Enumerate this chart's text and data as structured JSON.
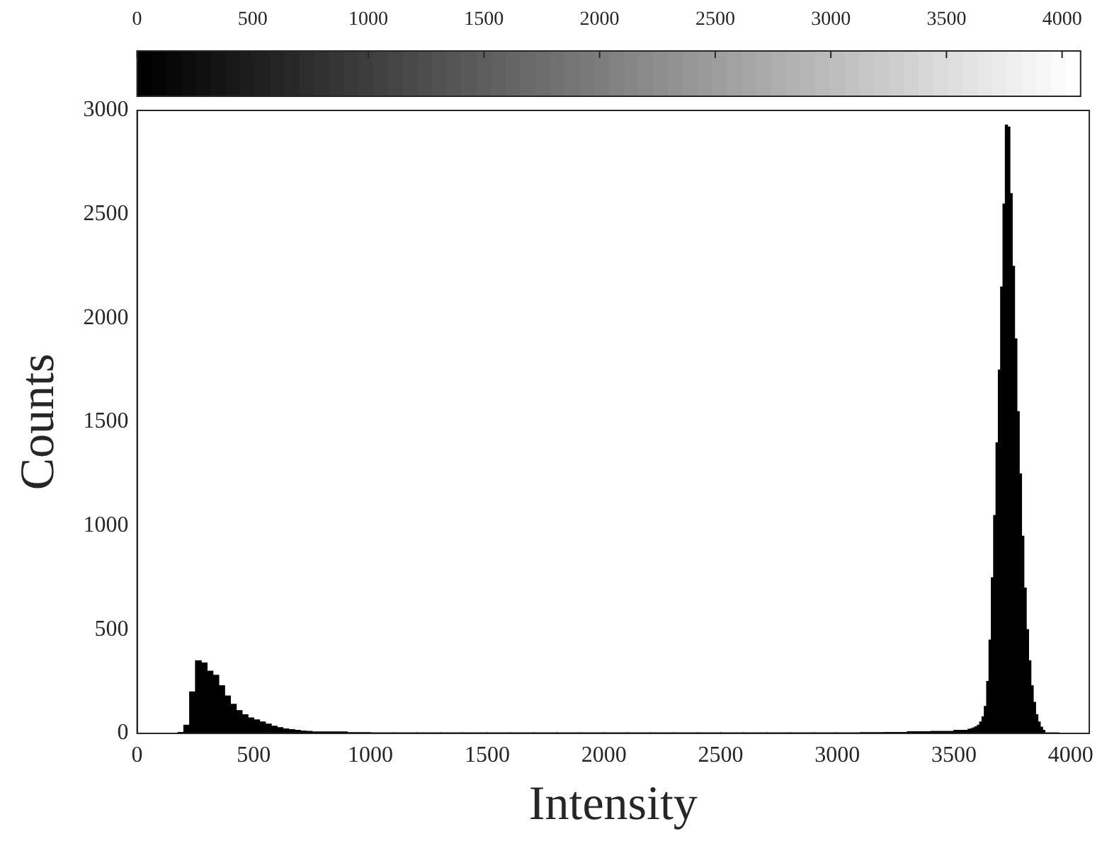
{
  "chart_data": {
    "type": "histogram",
    "xlabel": "Intensity",
    "ylabel": "Counts",
    "color": "#000000",
    "bins": [
      150,
      175,
      200,
      225,
      250,
      275,
      300,
      325,
      350,
      375,
      400,
      425,
      450,
      475,
      500,
      525,
      550,
      575,
      600,
      625,
      650,
      675,
      700,
      725,
      750,
      900,
      1000,
      1100,
      1200,
      1300,
      1400,
      1500,
      1600,
      1700,
      1800,
      1900,
      2000,
      2100,
      2200,
      2300,
      2400,
      2500,
      2600,
      2700,
      2800,
      2900,
      3000,
      3100,
      3200,
      3300,
      3400,
      3500,
      3560,
      3570,
      3580,
      3590,
      3600,
      3610,
      3620,
      3630,
      3640,
      3650,
      3660,
      3670,
      3680,
      3690,
      3700,
      3710,
      3720,
      3730,
      3740,
      3750,
      3760,
      3770,
      3780,
      3790,
      3800,
      3810,
      3820,
      3830,
      3840,
      3850,
      3860,
      3870,
      3880,
      3890,
      3950
    ],
    "values": [
      0,
      5,
      40,
      200,
      350,
      340,
      300,
      280,
      230,
      180,
      140,
      110,
      90,
      75,
      65,
      55,
      45,
      35,
      28,
      22,
      18,
      15,
      12,
      10,
      7,
      4,
      3,
      3,
      3,
      3,
      3,
      3,
      3,
      3,
      3,
      3,
      3,
      3,
      3,
      3,
      3,
      3,
      3,
      3,
      3,
      3,
      3,
      4,
      5,
      8,
      10,
      15,
      20,
      23,
      27,
      32,
      40,
      55,
      80,
      130,
      250,
      450,
      750,
      1050,
      1400,
      1750,
      2150,
      2550,
      2930,
      2920,
      2600,
      2250,
      1900,
      1550,
      1250,
      950,
      700,
      500,
      350,
      230,
      150,
      90,
      55,
      30,
      15,
      3
    ],
    "xlim": [
      0,
      4080
    ],
    "xticks": [
      0,
      500,
      1000,
      1500,
      2000,
      2500,
      3000,
      3500,
      4000
    ],
    "ylim": [
      0,
      3000
    ],
    "yticks": [
      0,
      500,
      1000,
      1500,
      2000,
      2500,
      3000
    ],
    "clim": [
      0,
      4080
    ],
    "cticks": [
      0,
      500,
      1000,
      1500,
      2000,
      2500,
      3000,
      3500,
      4000
    ]
  }
}
